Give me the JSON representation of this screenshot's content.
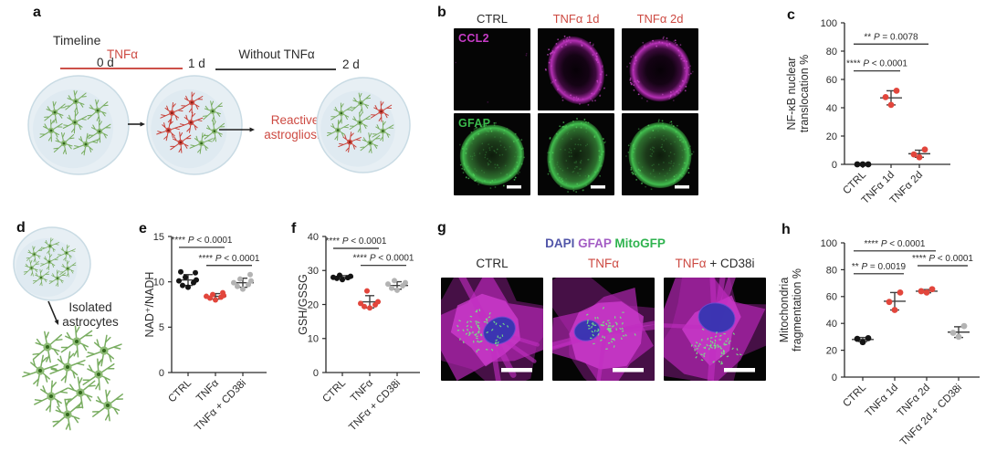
{
  "colors": {
    "accent_red": "#cd4a42",
    "dot_red": "#e2463c",
    "dot_black": "#141414",
    "dot_gray": "#b3b3b3",
    "magenta": "#c73cc7",
    "gfap_green": "#3bbb4c",
    "dapi_blue": "#5155a8",
    "gfap_purple": "#a35cc4",
    "mito_green": "#2fb34f",
    "timeline_black": "#3c3c3c"
  },
  "panel_a": {
    "label": "a",
    "timeline_title": "Timeline",
    "time_0": "0 d",
    "time_1": "1 d",
    "time_2": "2 d",
    "segment1_label": "TNFα",
    "segment2_label": "Without TNFα",
    "annotation_line1": "Reactive",
    "annotation_line2": "astrogliosis"
  },
  "panel_b": {
    "label": "b",
    "col_headers": [
      {
        "text": "CTRL",
        "color": "#2b2b2b"
      },
      {
        "text": "TNFα 1d",
        "color": "#cd4a42"
      },
      {
        "text": "TNFα 2d",
        "color": "#cd4a42"
      }
    ],
    "row_labels": [
      {
        "text": "CCL2",
        "color": "#c73cc7"
      },
      {
        "text": "GFAP",
        "color": "#3bbb4c"
      }
    ]
  },
  "panel_d": {
    "label": "d",
    "caption_line1": "Isolated",
    "caption_line2": "astrocytes"
  },
  "panel_g": {
    "label": "g",
    "stains": [
      {
        "text": "DAPI",
        "color": "#5155a8"
      },
      {
        "text": "GFAP",
        "color": "#a35cc4"
      },
      {
        "text": "MitoGFP",
        "color": "#2fb34f"
      }
    ],
    "col_headers": [
      {
        "parts": [
          {
            "text": "CTRL",
            "color": "#2b2b2b"
          }
        ]
      },
      {
        "parts": [
          {
            "text": "TNFα",
            "color": "#cd4a42"
          }
        ]
      },
      {
        "parts": [
          {
            "text": "TNFα",
            "color": "#cd4a42"
          },
          {
            "text": " + CD38i",
            "color": "#2b2b2b"
          }
        ]
      }
    ]
  },
  "chart_data": [
    {
      "panel_label": "c",
      "type": "scatter",
      "ylabel_lines": [
        "NF-κB nuclear",
        "translocation %"
      ],
      "ylim": [
        0,
        100
      ],
      "yticks": [
        0,
        20,
        40,
        60,
        80,
        100
      ],
      "categories": [
        "CTRL",
        "TNFα 1d",
        "TNFα 2d"
      ],
      "series": [
        {
          "color": "#141414",
          "values": [
            0,
            0,
            0
          ],
          "mean": 0,
          "sd": 0,
          "show_stats": false
        },
        {
          "color": "#e2463c",
          "values": [
            42,
            47.5,
            52
          ],
          "mean": 47,
          "sd": 5
        },
        {
          "color": "#e2463c",
          "values": [
            5,
            7,
            10.5
          ],
          "mean": 7.5,
          "sd": 2.5
        }
      ],
      "significance": [
        {
          "from": 0,
          "to": 2,
          "stars": "**",
          "label": "P = 0.0078",
          "y": 85
        },
        {
          "from": 0,
          "to": 1,
          "stars": "****",
          "label": "P < 0.0001",
          "y": 66
        }
      ]
    },
    {
      "panel_label": "e",
      "type": "scatter",
      "ylabel_lines": [
        "NAD⁺/NADH"
      ],
      "ylim": [
        0,
        15
      ],
      "yticks": [
        0,
        5,
        10,
        15
      ],
      "categories": [
        "CTRL",
        "TNFα",
        "TNFα + CD38i"
      ],
      "series": [
        {
          "color": "#141414",
          "values": [
            9.4,
            9.6,
            9.9,
            10.1,
            10.2,
            10.5,
            11.0,
            11.1
          ],
          "mean": 10.2,
          "sd": 0.6
        },
        {
          "color": "#e2463c",
          "values": [
            8.0,
            8.2,
            8.3,
            8.4,
            8.5,
            8.6,
            8.8
          ],
          "mean": 8.4,
          "sd": 0.3
        },
        {
          "color": "#b3b3b3",
          "values": [
            9.2,
            9.5,
            9.7,
            9.9,
            10.1,
            10.3,
            10.8
          ],
          "mean": 9.9,
          "sd": 0.5
        }
      ],
      "significance": [
        {
          "from": 0,
          "to": 1,
          "stars": "****",
          "label": "P < 0.0001",
          "y": 13.8
        },
        {
          "from": 1,
          "to": 2,
          "stars": "****",
          "label": "P < 0.0001",
          "y": 11.8
        }
      ]
    },
    {
      "panel_label": "f",
      "type": "scatter",
      "ylabel_lines": [
        "GSH/GSSG"
      ],
      "ylim": [
        0,
        40
      ],
      "yticks": [
        0,
        10,
        20,
        30,
        40
      ],
      "categories": [
        "CTRL",
        "TNFα",
        "TNFα + CD38i"
      ],
      "series": [
        {
          "color": "#141414",
          "values": [
            27.3,
            27.7,
            27.9,
            28.0,
            28.3,
            28.6
          ],
          "mean": 28,
          "sd": 0.5
        },
        {
          "color": "#e2463c",
          "values": [
            19.0,
            19.4,
            19.9,
            20.3,
            20.8,
            24.0
          ],
          "mean": 20.8,
          "sd": 1.8
        },
        {
          "color": "#b3b3b3",
          "values": [
            24.2,
            24.8,
            25.5,
            26.0,
            26.4,
            27.0
          ],
          "mean": 25.6,
          "sd": 1.1
        }
      ],
      "significance": [
        {
          "from": 0,
          "to": 1,
          "stars": "****",
          "label": "P < 0.0001",
          "y": 36.5
        },
        {
          "from": 1,
          "to": 2,
          "stars": "****",
          "label": "P < 0.0001",
          "y": 31.5
        }
      ]
    },
    {
      "panel_label": "h",
      "type": "scatter",
      "ylabel_lines": [
        "Mitochondria",
        "fragmentation %"
      ],
      "ylim": [
        0,
        100
      ],
      "yticks": [
        0,
        20,
        40,
        60,
        80,
        100
      ],
      "categories": [
        "CTRL",
        "TNFα 1d",
        "TNFα 2d",
        "TNFα 2d + CD38i"
      ],
      "series": [
        {
          "color": "#141414",
          "values": [
            26,
            28.5,
            29
          ],
          "mean": 28,
          "sd": 1.5
        },
        {
          "color": "#e2463c",
          "values": [
            50,
            56,
            63
          ],
          "mean": 56.5,
          "sd": 6.5
        },
        {
          "color": "#e2463c",
          "values": [
            63,
            64,
            65.5
          ],
          "mean": 64,
          "sd": 1.2
        },
        {
          "color": "#b3b3b3",
          "values": [
            30,
            33,
            38
          ],
          "mean": 33.5,
          "sd": 4
        }
      ],
      "significance": [
        {
          "from": 0,
          "to": 2,
          "stars": "****",
          "label": "P < 0.0001",
          "y": 94
        },
        {
          "from": 0,
          "to": 1,
          "stars": "**",
          "label": "P = 0.0019",
          "y": 77
        },
        {
          "from": 2,
          "to": 3,
          "stars": "****",
          "label": "P < 0.0001",
          "y": 83
        }
      ]
    }
  ]
}
